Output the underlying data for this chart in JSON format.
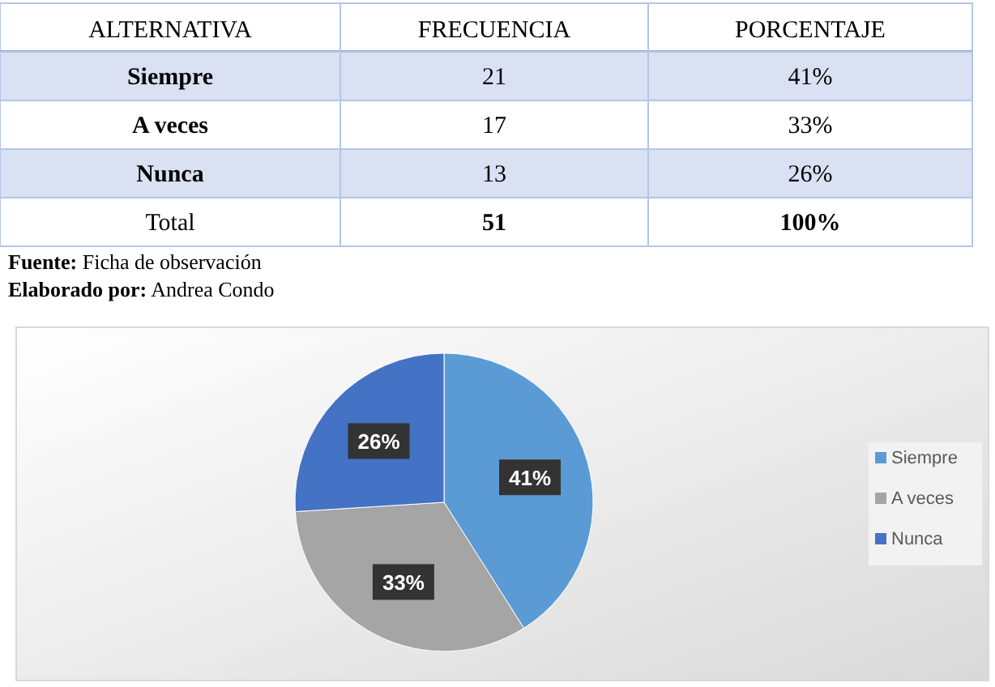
{
  "chart_data": [
    {
      "type": "other",
      "categories": [
        "ALTERNATIVA",
        "FRECUENCIA",
        "PORCENTAJE"
      ],
      "y_categories": [
        "Siempre",
        "A veces",
        "Nunca",
        "Total"
      ],
      "cell_labels": [
        [
          "21",
          "41%"
        ],
        [
          "17",
          "33%"
        ],
        [
          "13",
          "26%"
        ],
        [
          "51",
          "100%"
        ]
      ],
      "annotations": [
        "Fuente: Ficha de observación",
        "Elaborado por: Andrea Condo"
      ]
    },
    {
      "type": "pie",
      "categories": [
        "Siempre",
        "A veces",
        "Nunca"
      ],
      "values": [
        41,
        33,
        26
      ],
      "colors": [
        "#5b9bd5",
        "#a5a5a5",
        "#4472c4"
      ],
      "value_labels": [
        "41%",
        "33%",
        "26%"
      ],
      "legend": "right"
    }
  ]
}
